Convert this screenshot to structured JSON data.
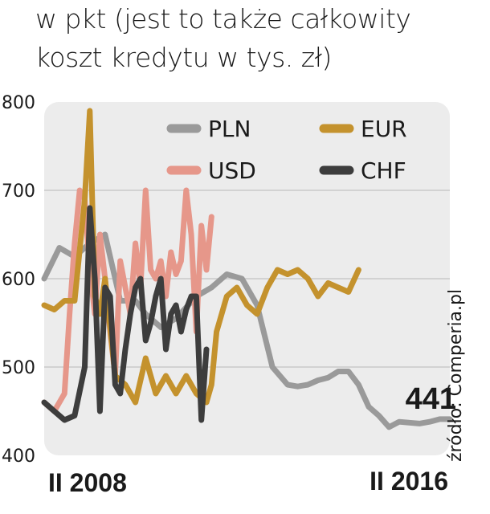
{
  "subtitle": {
    "line1": "w pkt (jest to także całkowity",
    "line2": "koszt kredytu w tys. zł)"
  },
  "source": "źródło: Comperia.pl",
  "colors": {
    "PLN": "#9a9a9a",
    "USD": "#e6978a",
    "EUR": "#c4922d",
    "CHF": "#3d3d3d",
    "plot_bg": "#ececec",
    "grid": "#d2d2d2"
  },
  "chart_data": {
    "type": "line",
    "ylim": [
      400,
      800
    ],
    "yticks": [
      "400",
      "500",
      "600",
      "700",
      "800"
    ],
    "x_start_label": "II 2008",
    "x_end_label": "II 2016",
    "last_value_label": "441",
    "legend_position": "top",
    "grid": true,
    "series": [
      {
        "name": "PLN",
        "x": [
          0.0,
          0.3,
          0.6,
          0.9,
          1.2,
          1.5,
          1.8,
          2.0,
          2.3,
          2.6,
          3.0,
          3.3,
          3.6,
          3.9,
          4.2,
          4.5,
          4.8,
          5.0,
          5.2,
          5.4,
          5.6,
          5.8,
          6.0,
          6.2,
          6.4,
          6.6,
          6.8,
          7.0,
          7.2,
          7.4,
          7.6,
          7.8,
          8.0
        ],
        "values": [
          600,
          635,
          625,
          640,
          650,
          575,
          575,
          560,
          545,
          555,
          580,
          590,
          605,
          600,
          570,
          500,
          480,
          478,
          480,
          485,
          488,
          495,
          495,
          480,
          455,
          445,
          432,
          438,
          437,
          436,
          438,
          441,
          441
        ]
      },
      {
        "name": "USD",
        "x": [
          0.0,
          0.2,
          0.4,
          0.5,
          0.6,
          0.7,
          0.8,
          0.9,
          1.0,
          1.1,
          1.2,
          1.3,
          1.4,
          1.5,
          1.6,
          1.7,
          1.8,
          1.9,
          2.0,
          2.1,
          2.2,
          2.3,
          2.4,
          2.5,
          2.6,
          2.7,
          2.8,
          2.9,
          3.0,
          3.1,
          3.2,
          3.3
        ],
        "values": [
          460,
          450,
          470,
          560,
          640,
          700,
          690,
          610,
          560,
          650,
          600,
          540,
          490,
          620,
          590,
          560,
          640,
          590,
          700,
          610,
          600,
          620,
          580,
          630,
          605,
          620,
          700,
          650,
          540,
          660,
          610,
          670
        ]
      },
      {
        "name": "EUR",
        "x": [
          0.0,
          0.2,
          0.4,
          0.6,
          0.8,
          0.9,
          1.0,
          1.1,
          1.2,
          1.4,
          1.6,
          1.8,
          2.0,
          2.2,
          2.4,
          2.6,
          2.8,
          3.0,
          3.2,
          3.3,
          3.4,
          3.6,
          3.8,
          4.0,
          4.2,
          4.4,
          4.6,
          4.8,
          5.0,
          5.2,
          5.4,
          5.6,
          5.8,
          6.0,
          6.2
        ],
        "values": [
          570,
          565,
          575,
          575,
          690,
          790,
          580,
          560,
          600,
          490,
          480,
          460,
          510,
          470,
          490,
          470,
          490,
          470,
          460,
          480,
          540,
          580,
          590,
          570,
          560,
          590,
          610,
          605,
          610,
          600,
          580,
          595,
          590,
          585,
          610
        ]
      },
      {
        "name": "CHF",
        "x": [
          0.0,
          0.2,
          0.4,
          0.6,
          0.8,
          0.9,
          1.0,
          1.1,
          1.2,
          1.3,
          1.4,
          1.5,
          1.6,
          1.7,
          1.8,
          1.9,
          2.0,
          2.1,
          2.2,
          2.3,
          2.4,
          2.5,
          2.6,
          2.7,
          2.8,
          2.9,
          3.0,
          3.1,
          3.2
        ],
        "values": [
          460,
          450,
          440,
          445,
          500,
          680,
          600,
          450,
          590,
          580,
          480,
          470,
          520,
          560,
          590,
          600,
          530,
          550,
          580,
          600,
          520,
          560,
          570,
          540,
          565,
          580,
          580,
          440,
          520
        ]
      }
    ]
  }
}
